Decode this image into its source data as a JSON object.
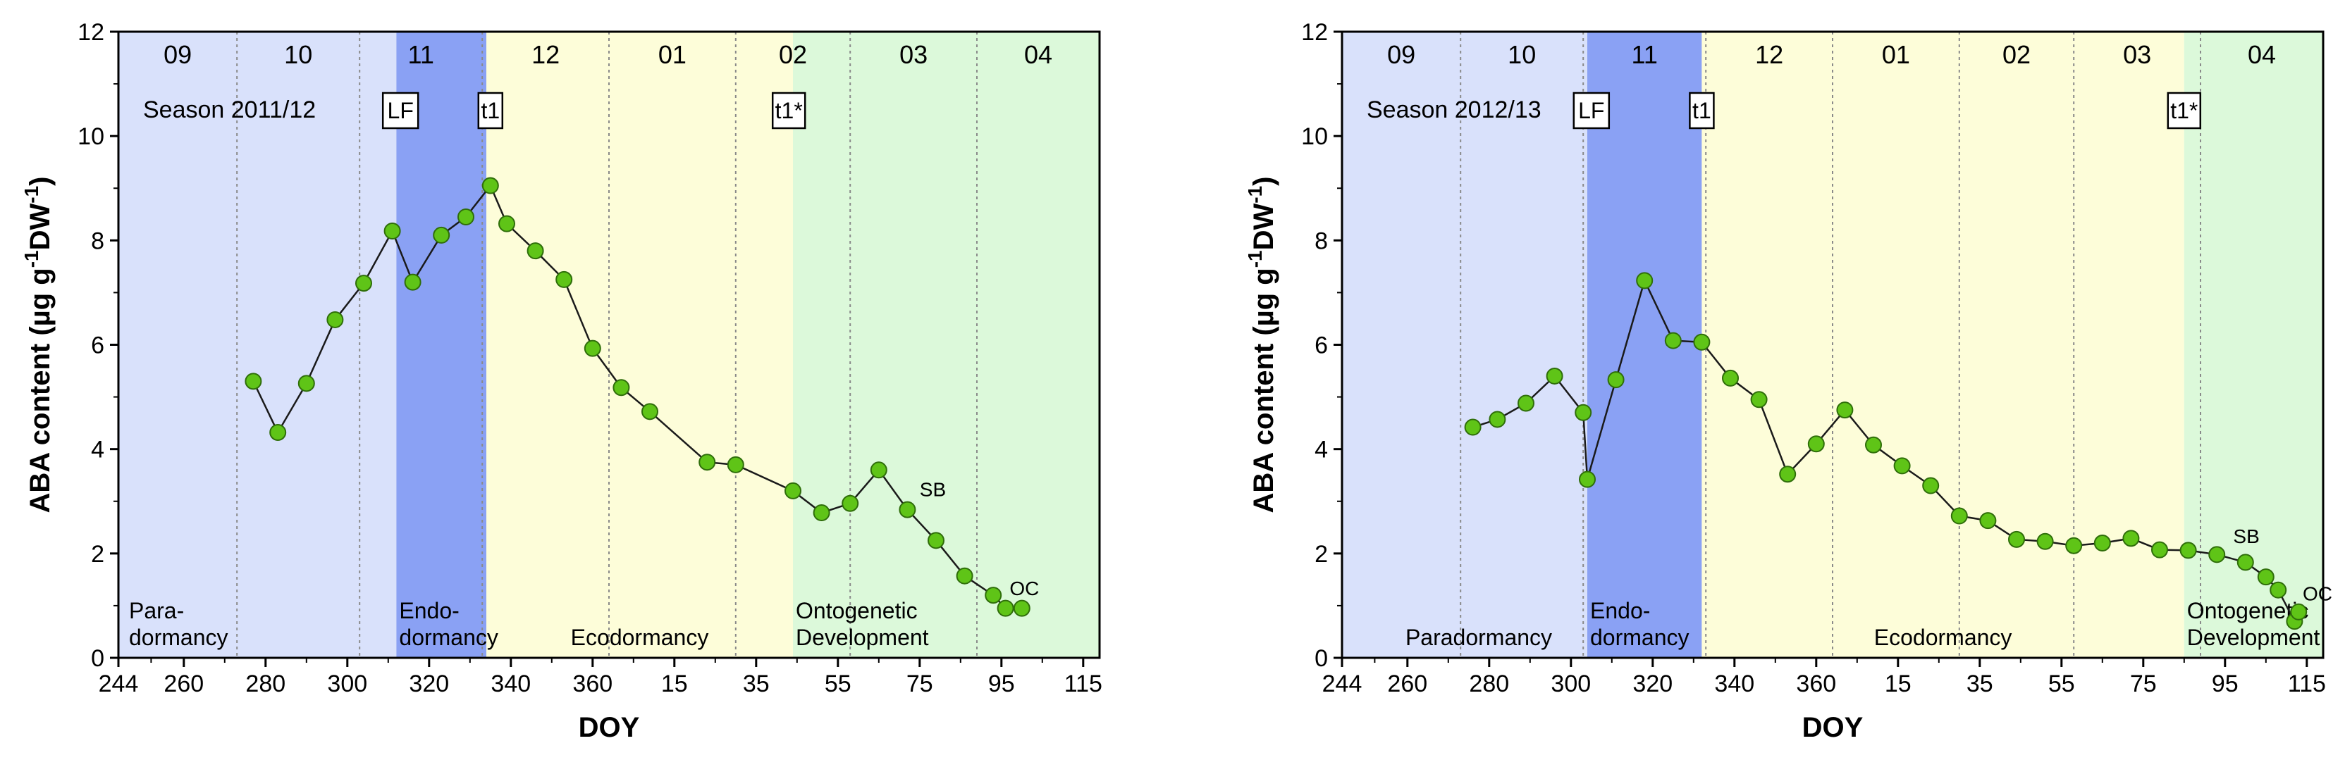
{
  "chart_data": [
    {
      "type": "line",
      "title": "Season 2011/12",
      "xlabel": "DOY",
      "ylabel": "ABA content (µg g-1 DW-1)",
      "ylabel_parts": [
        "ABA content (µg g",
        "-1",
        "DW",
        "-1",
        ")"
      ],
      "ylim": [
        0,
        12
      ],
      "yticks": [
        "0",
        "2",
        "4",
        "6",
        "8",
        "10",
        "12"
      ],
      "xticks": [
        "244",
        "260",
        "280",
        "300",
        "320",
        "340",
        "360",
        "15",
        "35",
        "55",
        "75",
        "95",
        "115"
      ],
      "xtick_positions": [
        0,
        16,
        36,
        56,
        76,
        96,
        116,
        136,
        156,
        176,
        196,
        216,
        236
      ],
      "x_total": 240,
      "months": [
        {
          "label": "09",
          "start": 0,
          "end": 29
        },
        {
          "label": "10",
          "start": 29,
          "end": 59
        },
        {
          "label": "11",
          "start": 59,
          "end": 89
        },
        {
          "label": "12",
          "start": 89,
          "end": 120
        },
        {
          "label": "01",
          "start": 120,
          "end": 151
        },
        {
          "label": "02",
          "start": 151,
          "end": 179
        },
        {
          "label": "03",
          "start": 179,
          "end": 210
        },
        {
          "label": "04",
          "start": 210,
          "end": 240
        }
      ],
      "phases": [
        {
          "name": "Para-dormancy",
          "lines": [
            "Para-",
            "dormancy"
          ],
          "start": 0,
          "end": 68,
          "color": "#d9e1fb"
        },
        {
          "name": "Endo-dormancy",
          "lines": [
            "Endo-",
            "dormancy"
          ],
          "start": 68,
          "end": 90,
          "color": "#8aa1f4"
        },
        {
          "name": "Ecodormancy",
          "lines": [
            "Ecodormancy"
          ],
          "start": 90,
          "end": 165,
          "color": "#fdfdd9"
        },
        {
          "name": "Ontogenetic Development",
          "lines": [
            "Ontogenetic",
            "Development"
          ],
          "start": 165,
          "end": 240,
          "color": "#dcf9da"
        }
      ],
      "markers": [
        {
          "label": "LF",
          "x": 69
        },
        {
          "label": "t1",
          "x": 91
        },
        {
          "label": "t1*",
          "x": 164
        }
      ],
      "annotations": [
        {
          "label": "SB",
          "x": 196,
          "y": 3.1
        },
        {
          "label": "OC",
          "x": 218,
          "y": 1.2
        }
      ],
      "series": [
        {
          "name": "ABA content",
          "x": [
            33,
            39,
            46,
            53,
            60,
            67,
            72,
            79,
            85,
            91,
            95,
            102,
            109,
            116,
            123,
            130,
            144,
            151,
            165,
            172,
            179,
            186,
            193,
            200,
            207,
            214,
            217,
            221
          ],
          "y": [
            5.3,
            4.32,
            5.26,
            6.48,
            7.18,
            8.18,
            7.2,
            8.1,
            8.45,
            9.05,
            8.32,
            7.8,
            7.25,
            5.93,
            5.18,
            4.72,
            3.75,
            3.7,
            3.2,
            2.78,
            2.96,
            3.6,
            2.84,
            2.25,
            1.57,
            1.2,
            0.95,
            0.95
          ]
        }
      ]
    },
    {
      "type": "line",
      "title": "Season 2012/13",
      "xlabel": "DOY",
      "ylabel": "ABA content (µg g-1 DW-1)",
      "ylabel_parts": [
        "ABA content (µg g",
        "-1",
        "DW",
        "-1",
        ")"
      ],
      "ylim": [
        0,
        12
      ],
      "yticks": [
        "0",
        "2",
        "4",
        "6",
        "8",
        "10",
        "12"
      ],
      "xticks": [
        "244",
        "260",
        "280",
        "300",
        "320",
        "340",
        "360",
        "15",
        "35",
        "55",
        "75",
        "95",
        "115"
      ],
      "xtick_positions": [
        0,
        16,
        36,
        56,
        76,
        96,
        116,
        136,
        156,
        176,
        196,
        216,
        236
      ],
      "x_total": 240,
      "months": [
        {
          "label": "09",
          "start": 0,
          "end": 29
        },
        {
          "label": "10",
          "start": 29,
          "end": 59
        },
        {
          "label": "11",
          "start": 59,
          "end": 89
        },
        {
          "label": "12",
          "start": 89,
          "end": 120
        },
        {
          "label": "01",
          "start": 120,
          "end": 151
        },
        {
          "label": "02",
          "start": 151,
          "end": 179
        },
        {
          "label": "03",
          "start": 179,
          "end": 210
        },
        {
          "label": "04",
          "start": 210,
          "end": 240
        }
      ],
      "phases": [
        {
          "name": "Paradormancy",
          "lines": [
            "Paradormancy"
          ],
          "start": 0,
          "end": 60,
          "color": "#d9e1fb"
        },
        {
          "name": "Endo-dormancy",
          "lines": [
            "Endo-",
            "dormancy"
          ],
          "start": 60,
          "end": 88,
          "color": "#8aa1f4"
        },
        {
          "name": "Ecodormancy",
          "lines": [
            "Ecodormancy"
          ],
          "start": 88,
          "end": 206,
          "color": "#fdfdd9"
        },
        {
          "name": "Ontogenetic Development",
          "lines": [
            "Ontogenetic",
            "Development"
          ],
          "start": 206,
          "end": 240,
          "color": "#dcf9da"
        }
      ],
      "markers": [
        {
          "label": "LF",
          "x": 61
        },
        {
          "label": "t1",
          "x": 88
        },
        {
          "label": "t1*",
          "x": 206
        }
      ],
      "annotations": [
        {
          "label": "SB",
          "x": 218,
          "y": 2.2
        },
        {
          "label": "OC",
          "x": 235,
          "y": 1.1
        }
      ],
      "series": [
        {
          "name": "ABA content",
          "x": [
            32,
            38,
            45,
            52,
            59,
            60,
            67,
            74,
            81,
            88,
            95,
            102,
            109,
            116,
            123,
            130,
            137,
            144,
            151,
            158,
            165,
            172,
            179,
            186,
            193,
            200,
            207,
            214,
            221,
            226,
            229,
            233,
            234
          ],
          "y": [
            4.42,
            4.57,
            4.88,
            5.4,
            4.7,
            3.42,
            5.33,
            7.23,
            6.08,
            6.05,
            5.36,
            4.95,
            3.52,
            4.1,
            4.75,
            4.08,
            3.68,
            3.3,
            2.72,
            2.63,
            2.27,
            2.23,
            2.15,
            2.2,
            2.29,
            2.07,
            2.06,
            1.98,
            1.83,
            1.55,
            1.3,
            0.7,
            0.88
          ]
        }
      ]
    }
  ]
}
